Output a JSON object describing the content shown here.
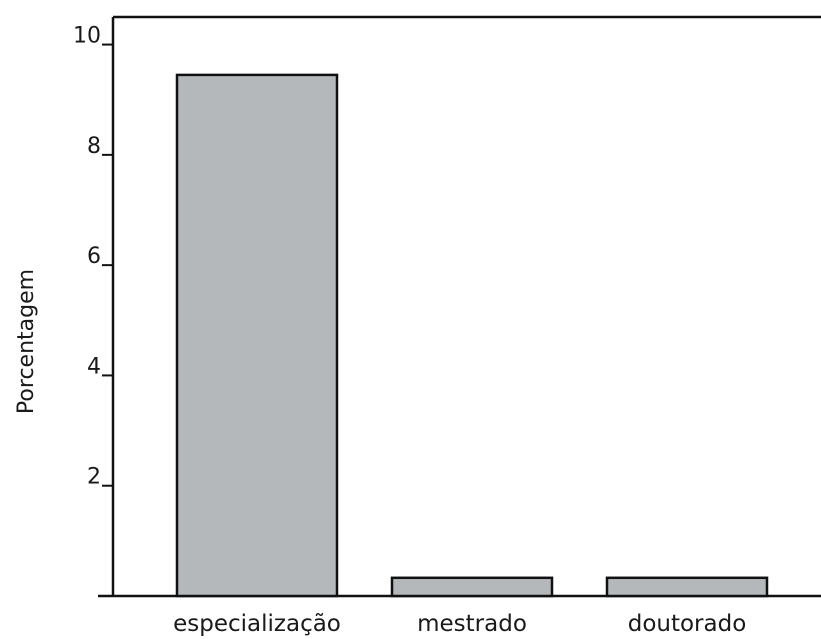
{
  "chart_data": {
    "type": "bar",
    "categories": [
      "especialização",
      "mestrado",
      "doutorado"
    ],
    "values": [
      9.45,
      0.33,
      0.33
    ],
    "title": "",
    "xlabel": "",
    "ylabel": "Porcentagem",
    "ylim": [
      0,
      10.5
    ],
    "yticks": [
      2,
      4,
      6,
      8,
      10
    ],
    "ytick_labels": [
      "2",
      "4",
      "6",
      "8",
      "10"
    ],
    "grid": false,
    "colors": {
      "bar_fill": "#b5b8bb",
      "bar_stroke": "#111111",
      "axis": "#111111"
    }
  }
}
